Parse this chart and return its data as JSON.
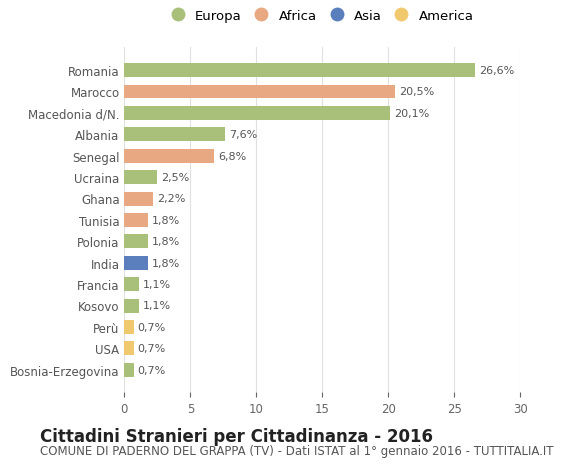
{
  "categories": [
    "Bosnia-Erzegovina",
    "USA",
    "Perù",
    "Kosovo",
    "Francia",
    "India",
    "Polonia",
    "Tunisia",
    "Ghana",
    "Ucraina",
    "Senegal",
    "Albania",
    "Macedonia d/N.",
    "Marocco",
    "Romania"
  ],
  "values": [
    0.7,
    0.7,
    0.7,
    1.1,
    1.1,
    1.8,
    1.8,
    1.8,
    2.2,
    2.5,
    6.8,
    7.6,
    20.1,
    20.5,
    26.6
  ],
  "labels": [
    "0,7%",
    "0,7%",
    "0,7%",
    "1,1%",
    "1,1%",
    "1,8%",
    "1,8%",
    "1,8%",
    "2,2%",
    "2,5%",
    "6,8%",
    "7,6%",
    "20,1%",
    "20,5%",
    "26,6%"
  ],
  "continents": [
    "Europa",
    "America",
    "America",
    "Europa",
    "Europa",
    "Asia",
    "Europa",
    "Africa",
    "Africa",
    "Europa",
    "Africa",
    "Europa",
    "Europa",
    "Africa",
    "Europa"
  ],
  "continent_colors": {
    "Europa": "#a8c07a",
    "Africa": "#e8a882",
    "Asia": "#5b7fbd",
    "America": "#f0c96e"
  },
  "legend_order": [
    "Europa",
    "Africa",
    "Asia",
    "America"
  ],
  "title": "Cittadini Stranieri per Cittadinanza - 2016",
  "subtitle": "COMUNE DI PADERNO DEL GRAPPA (TV) - Dati ISTAT al 1° gennaio 2016 - TUTTITALIA.IT",
  "xlim": [
    0,
    30
  ],
  "xticks": [
    0,
    5,
    10,
    15,
    20,
    25,
    30
  ],
  "background_color": "#ffffff",
  "grid_color": "#e0e0e0",
  "bar_height": 0.65,
  "title_fontsize": 12,
  "subtitle_fontsize": 8.5,
  "label_fontsize": 8,
  "tick_fontsize": 8.5,
  "legend_fontsize": 9.5
}
